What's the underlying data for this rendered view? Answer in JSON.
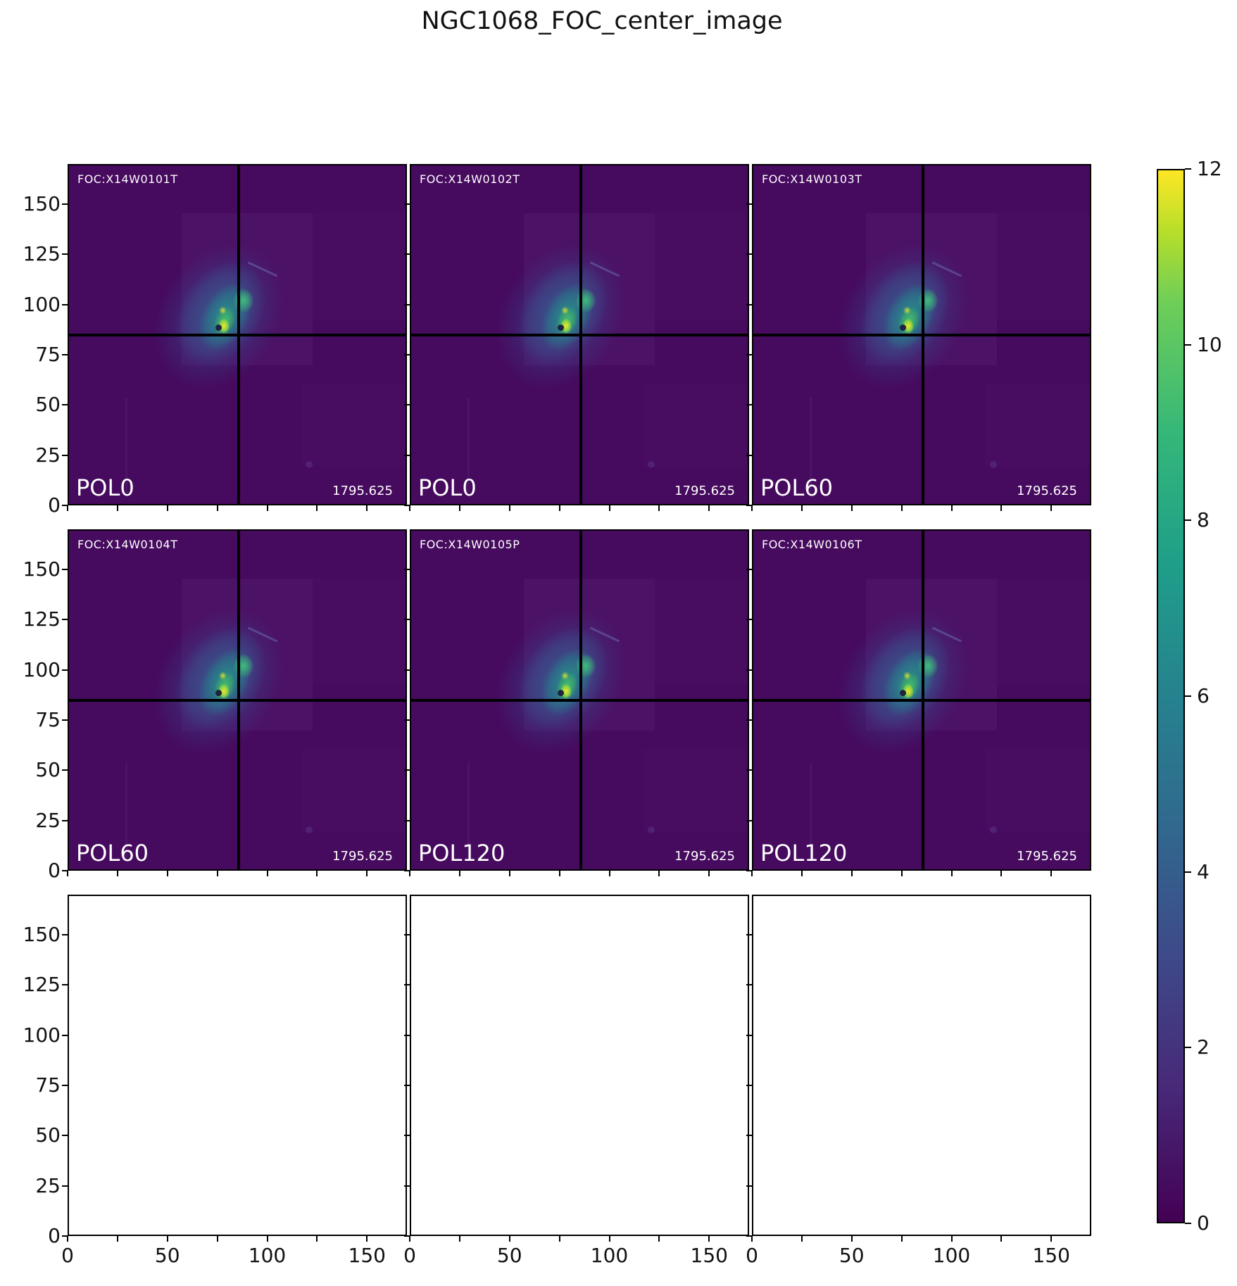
{
  "title": "NGC1068_FOC_center_image",
  "axes": {
    "range": [
      0,
      170
    ],
    "y_tick_labels": [
      "150",
      "125",
      "100",
      "75",
      "50",
      "25",
      "0"
    ],
    "y_tick_values": [
      150,
      125,
      100,
      75,
      50,
      25,
      0
    ],
    "x_tick_labels": [
      "0",
      "50",
      "100",
      "150"
    ],
    "x_tick_values": [
      0,
      50,
      100,
      150
    ],
    "tick_positions": [
      0,
      25,
      50,
      75,
      100,
      125,
      150
    ]
  },
  "colorbar": {
    "min": 0,
    "max": 12,
    "tick_labels": [
      "12",
      "10",
      "8",
      "6",
      "4",
      "2",
      "0"
    ],
    "tick_values": [
      12,
      10,
      8,
      6,
      4,
      2,
      0
    ],
    "colormap": "viridis"
  },
  "colors": {
    "panel_background": "#460a5e",
    "viridis_low": "#440154",
    "viridis_high": "#fde725",
    "crosshair": "#000000",
    "panel_text": "#ffffff",
    "axis_text": "#111111"
  },
  "chart_data": {
    "type": "heatmap",
    "title": "NGC1068_FOC_center_image",
    "layout": {
      "rows": 3,
      "cols": 3,
      "filled_panels": 6,
      "empty_panels": 3
    },
    "colormap": "viridis",
    "colorbar_range": [
      0,
      12
    ],
    "colorbar_ticks": [
      0,
      2,
      4,
      6,
      8,
      10,
      12
    ],
    "x_axis": {
      "range": [
        0,
        170
      ],
      "major_tick_labels": [
        0,
        50,
        100,
        150
      ],
      "tick_step": 25
    },
    "y_axis": {
      "range": [
        0,
        170
      ],
      "major_tick_labels": [
        0,
        25,
        50,
        75,
        100,
        125,
        150
      ]
    },
    "crosshair_data_coords": {
      "x": 85,
      "y": 85
    },
    "galaxy_center_data_coords": {
      "x": 78,
      "y": 95
    },
    "peak_value": 12,
    "panels": [
      {
        "row": 1,
        "col": 1,
        "foc_id": "FOC:X14W0101T",
        "pol_filter": "POL0",
        "exposure": "1795.625",
        "has_image": true
      },
      {
        "row": 1,
        "col": 2,
        "foc_id": "FOC:X14W0102T",
        "pol_filter": "POL0",
        "exposure": "1795.625",
        "has_image": true
      },
      {
        "row": 1,
        "col": 3,
        "foc_id": "FOC:X14W0103T",
        "pol_filter": "POL60",
        "exposure": "1795.625",
        "has_image": true
      },
      {
        "row": 2,
        "col": 1,
        "foc_id": "FOC:X14W0104T",
        "pol_filter": "POL60",
        "exposure": "1795.625",
        "has_image": true
      },
      {
        "row": 2,
        "col": 2,
        "foc_id": "FOC:X14W0105P",
        "pol_filter": "POL120",
        "exposure": "1795.625",
        "has_image": true
      },
      {
        "row": 2,
        "col": 3,
        "foc_id": "FOC:X14W0106T",
        "pol_filter": "POL120",
        "exposure": "1795.625",
        "has_image": true
      },
      {
        "row": 3,
        "col": 1,
        "foc_id": "",
        "pol_filter": "",
        "exposure": "",
        "has_image": false
      },
      {
        "row": 3,
        "col": 2,
        "foc_id": "",
        "pol_filter": "",
        "exposure": "",
        "has_image": false
      },
      {
        "row": 3,
        "col": 3,
        "foc_id": "",
        "pol_filter": "",
        "exposure": "",
        "has_image": false
      }
    ]
  }
}
